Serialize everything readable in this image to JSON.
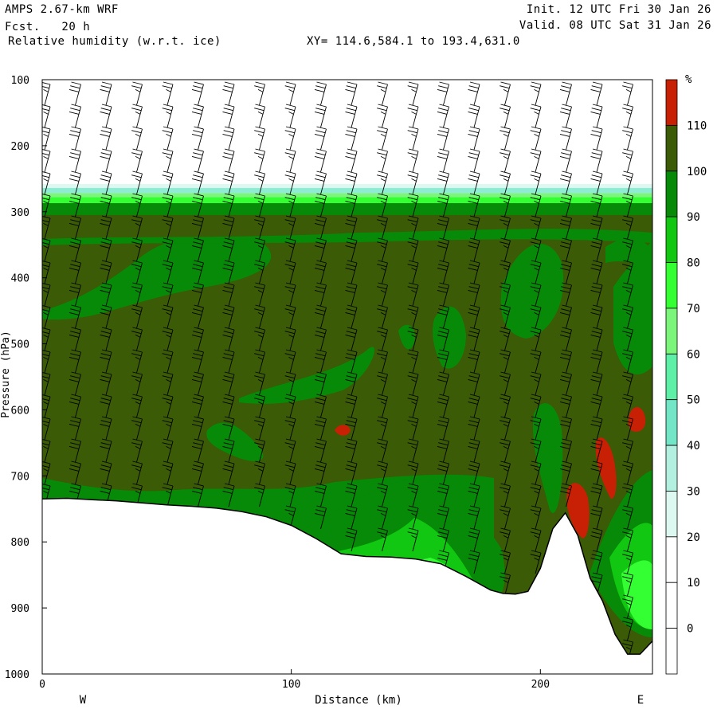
{
  "header": {
    "model": "AMPS 2.67-km WRF",
    "forecast": "Fcst.   20 h",
    "field": "Relative humidity (w.r.t. ice)",
    "init": "Init. 12 UTC Fri 30 Jan 26",
    "valid": "Valid. 08 UTC Sat 31 Jan 26",
    "section": "XY= 114.6,584.1 to 193.4,631.0"
  },
  "chart_data": {
    "type": "heatmap",
    "xlabel": "Distance (km)",
    "ylabel": "Pressure (hPa)",
    "xlim": [
      0,
      245
    ],
    "ylim": [
      1000,
      100
    ],
    "x_ticks": [
      0,
      100,
      200
    ],
    "y_ticks": [
      100,
      200,
      300,
      400,
      500,
      600,
      700,
      800,
      900,
      1000
    ],
    "west_label": "W",
    "east_label": "E",
    "terrain_surface": {
      "x": [
        0,
        10,
        20,
        30,
        40,
        50,
        60,
        70,
        80,
        90,
        100,
        110,
        120,
        130,
        140,
        150,
        160,
        170,
        180,
        185,
        190,
        195,
        200,
        205,
        210,
        215,
        220,
        225,
        230,
        235,
        240,
        245
      ],
      "p": [
        735,
        734,
        736,
        738,
        741,
        744,
        746,
        749,
        754,
        762,
        775,
        795,
        818,
        822,
        823,
        826,
        833,
        852,
        873,
        878,
        879,
        875,
        840,
        780,
        756,
        790,
        855,
        890,
        940,
        970,
        970,
        950
      ]
    },
    "colorbar": {
      "unit": "%",
      "levels": [
        -10,
        0,
        10,
        20,
        30,
        40,
        50,
        60,
        70,
        80,
        90,
        100,
        110,
        120
      ],
      "tick_labels": [
        "0",
        "10",
        "20",
        "30",
        "40",
        "50",
        "60",
        "70",
        "80",
        "90",
        "100",
        "110"
      ],
      "colors": [
        "#ffffff",
        "#ffffff",
        "#ffffff",
        "#dcf8f0",
        "#b3f0e0",
        "#74e6c8",
        "#5ff0a8",
        "#7bf57a",
        "#33ff33",
        "#11c711",
        "#078a07",
        "#3b5b06",
        "#c82005"
      ]
    },
    "regions": [
      {
        "level": "100-110",
        "desc": "main moist layer",
        "x": [
          0,
          245
        ],
        "p_top": 305,
        "p_bottom": "surface"
      },
      {
        "level": "90-100",
        "desc": "upper cloud base band",
        "x": [
          0,
          245
        ],
        "p_top": 287,
        "p_bottom": 305
      },
      {
        "level": "80-90",
        "desc": "top gradient",
        "x": [
          0,
          245
        ],
        "p_top": 278,
        "p_bottom": 287
      },
      {
        "level": "70-80",
        "desc": "top gradient",
        "x": [
          0,
          245
        ],
        "p_top": 272,
        "p_bottom": 278
      },
      {
        "level": "30-70",
        "desc": "top gradient",
        "x": [
          0,
          245
        ],
        "p_top": 262,
        "p_bottom": 272
      },
      {
        "level": ">110",
        "desc": "supersaturated spot",
        "x": [
          122,
          124
        ],
        "p": [
          625,
          635
        ]
      },
      {
        "level": ">110",
        "desc": "supersaturated lee wave",
        "x": [
          210,
          218
        ],
        "p": [
          710,
          790
        ]
      },
      {
        "level": ">110",
        "desc": "supersaturated lee wave",
        "x": [
          222,
          230
        ],
        "p": [
          640,
          730
        ]
      },
      {
        "level": ">110",
        "desc": "supersaturated lee wave",
        "x": [
          237,
          243
        ],
        "p": [
          600,
          640
        ]
      }
    ]
  }
}
